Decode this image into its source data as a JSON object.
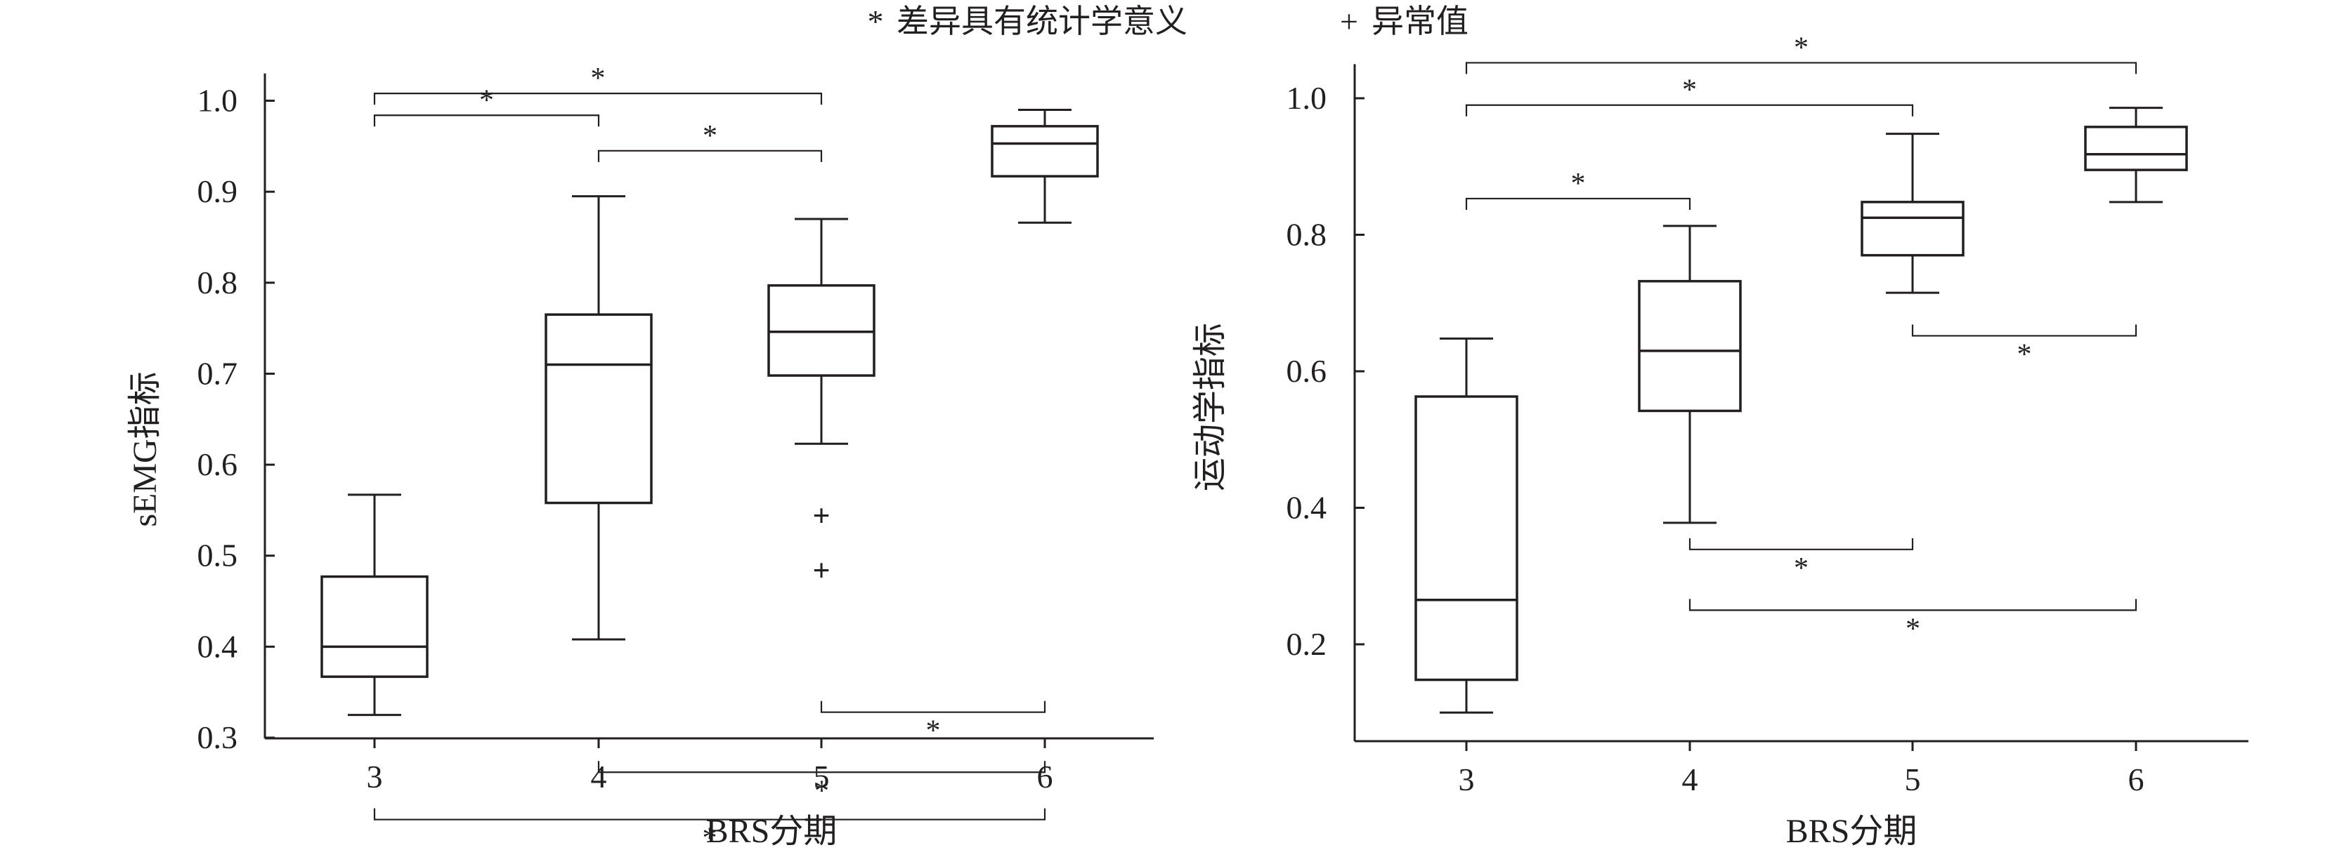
{
  "legend": {
    "sig_symbol": "*",
    "sig_text": "差异具有统计学意义",
    "outlier_symbol": "+",
    "outlier_text": "异常值"
  },
  "chart_data": [
    {
      "type": "box",
      "title": "",
      "xlabel": "BRS分期",
      "ylabel": "sEMG指标",
      "categories": [
        "3",
        "4",
        "5",
        "6"
      ],
      "ylim": [
        0.29,
        1.03
      ],
      "yticks": [
        0.3,
        0.4,
        0.5,
        0.6,
        0.7,
        0.8,
        0.9,
        1.0
      ],
      "ytick_labels": [
        "0.3",
        "0.4",
        "0.5",
        "0.6",
        "0.7",
        "0.8",
        "0.9",
        "1.0"
      ],
      "boxes": [
        {
          "category": "3",
          "whisker_low": 0.325,
          "q1": 0.367,
          "median": 0.4,
          "q3": 0.477,
          "whisker_high": 0.567,
          "outliers": []
        },
        {
          "category": "4",
          "whisker_low": 0.408,
          "q1": 0.558,
          "median": 0.71,
          "q3": 0.765,
          "whisker_high": 0.895,
          "outliers": []
        },
        {
          "category": "5",
          "whisker_low": 0.623,
          "q1": 0.698,
          "median": 0.746,
          "q3": 0.797,
          "whisker_high": 0.87,
          "outliers": [
            0.544,
            0.484
          ]
        },
        {
          "category": "6",
          "whisker_low": 0.866,
          "q1": 0.917,
          "median": 0.953,
          "q3": 0.972,
          "whisker_high": 0.99,
          "outliers": []
        }
      ],
      "significance": [
        {
          "from": "3",
          "to": "5",
          "level": 1.008,
          "dir": "down",
          "label": "*"
        },
        {
          "from": "3",
          "to": "4",
          "level": 0.984,
          "dir": "down",
          "label": "*"
        },
        {
          "from": "4",
          "to": "5",
          "level": 0.945,
          "dir": "down",
          "label": "*"
        },
        {
          "from": "5",
          "to": "6",
          "level": 0.328,
          "dir": "up",
          "label": "*"
        },
        {
          "from": "4",
          "to": "6",
          "level": 0.262,
          "dir": "up",
          "label": "*"
        },
        {
          "from": "3",
          "to": "6",
          "level": 0.21,
          "dir": "up",
          "label": "*"
        }
      ]
    },
    {
      "type": "box",
      "title": "",
      "xlabel": "BRS分期",
      "ylabel": "运动学指标",
      "categories": [
        "3",
        "4",
        "5",
        "6"
      ],
      "ylim": [
        0.05,
        1.05
      ],
      "yticks": [
        0.2,
        0.4,
        0.6,
        0.8,
        1.0
      ],
      "ytick_labels": [
        "0.2",
        "0.4",
        "0.6",
        "0.8",
        "1.0"
      ],
      "boxes": [
        {
          "category": "3",
          "whisker_low": 0.1,
          "q1": 0.148,
          "median": 0.265,
          "q3": 0.563,
          "whisker_high": 0.648,
          "outliers": []
        },
        {
          "category": "4",
          "whisker_low": 0.378,
          "q1": 0.542,
          "median": 0.63,
          "q3": 0.732,
          "whisker_high": 0.813,
          "outliers": []
        },
        {
          "category": "5",
          "whisker_low": 0.715,
          "q1": 0.77,
          "median": 0.825,
          "q3": 0.848,
          "whisker_high": 0.948,
          "outliers": []
        },
        {
          "category": "6",
          "whisker_low": 0.848,
          "q1": 0.895,
          "median": 0.918,
          "q3": 0.958,
          "whisker_high": 0.986,
          "outliers": []
        }
      ],
      "significance": [
        {
          "from": "3",
          "to": "6",
          "level": 1.052,
          "dir": "down",
          "label": "*"
        },
        {
          "from": "3",
          "to": "5",
          "level": 0.99,
          "dir": "down",
          "label": "*"
        },
        {
          "from": "3",
          "to": "4",
          "level": 0.853,
          "dir": "down",
          "label": "*"
        },
        {
          "from": "5",
          "to": "6",
          "level": 0.652,
          "dir": "up",
          "label": "*"
        },
        {
          "from": "4",
          "to": "5",
          "level": 0.339,
          "dir": "up",
          "label": "*"
        },
        {
          "from": "4",
          "to": "6",
          "level": 0.25,
          "dir": "up",
          "label": "*"
        }
      ]
    }
  ]
}
